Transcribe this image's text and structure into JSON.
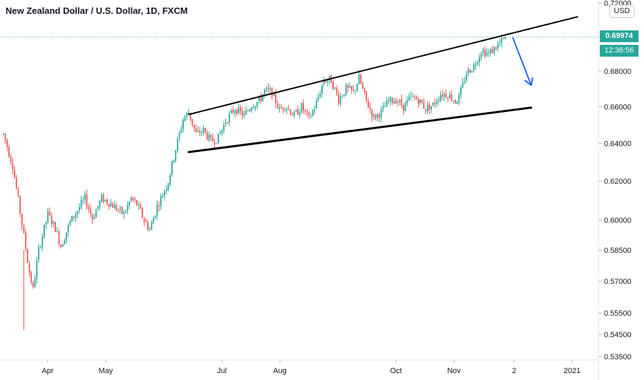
{
  "header": {
    "title": "New Zealand Dollar / U.S. Dollar, 1D, FXCM",
    "currency_button": "USD"
  },
  "last_price": {
    "value": "0.69974",
    "countdown": "12:36:56"
  },
  "colors": {
    "up": "#26a69a",
    "down": "#ef5350",
    "drawing": "#000000",
    "arrow": "#2962ff"
  },
  "chart_data": {
    "type": "candlestick",
    "title": "New Zealand Dollar / U.S. Dollar, 1D, FXCM",
    "y_scale": "log",
    "yticks": [
      "0.72000",
      "0.68000",
      "0.66000",
      "0.64000",
      "0.62000",
      "0.60000",
      "0.58500",
      "0.57000",
      "0.55500",
      "0.54500",
      "0.53500"
    ],
    "xticks": [
      "Apr",
      "May",
      "Jul",
      "Aug",
      "Oct",
      "Nov",
      "2",
      "2021"
    ],
    "ylim": [
      0.532,
      0.722
    ],
    "last_close": 0.69974,
    "path": [
      [
        0,
        0.645
      ],
      [
        5,
        0.628
      ],
      [
        10,
        0.598
      ],
      [
        14,
        0.574
      ],
      [
        16,
        0.566
      ],
      [
        19,
        0.585
      ],
      [
        24,
        0.603
      ],
      [
        28,
        0.596
      ],
      [
        31,
        0.587
      ],
      [
        36,
        0.599
      ],
      [
        40,
        0.605
      ],
      [
        44,
        0.611
      ],
      [
        48,
        0.601
      ],
      [
        53,
        0.611
      ],
      [
        57,
        0.609
      ],
      [
        61,
        0.606
      ],
      [
        65,
        0.603
      ],
      [
        69,
        0.611
      ],
      [
        72,
        0.608
      ],
      [
        76,
        0.6
      ],
      [
        79,
        0.595
      ],
      [
        83,
        0.607
      ],
      [
        86,
        0.613
      ],
      [
        89,
        0.62
      ],
      [
        93,
        0.637
      ],
      [
        97,
        0.653
      ],
      [
        100,
        0.657
      ],
      [
        104,
        0.645
      ],
      [
        108,
        0.647
      ],
      [
        112,
        0.641
      ],
      [
        116,
        0.643
      ],
      [
        120,
        0.652
      ],
      [
        125,
        0.659
      ],
      [
        130,
        0.655
      ],
      [
        134,
        0.661
      ],
      [
        138,
        0.663
      ],
      [
        141,
        0.669
      ],
      [
        145,
        0.668
      ],
      [
        149,
        0.658
      ],
      [
        152,
        0.661
      ],
      [
        157,
        0.655
      ],
      [
        161,
        0.66
      ],
      [
        165,
        0.653
      ],
      [
        169,
        0.662
      ],
      [
        173,
        0.675
      ],
      [
        177,
        0.675
      ],
      [
        181,
        0.664
      ],
      [
        185,
        0.67
      ],
      [
        189,
        0.668
      ],
      [
        192,
        0.676
      ],
      [
        196,
        0.663
      ],
      [
        200,
        0.654
      ],
      [
        204,
        0.657
      ],
      [
        208,
        0.663
      ],
      [
        212,
        0.664
      ],
      [
        216,
        0.66
      ],
      [
        220,
        0.665
      ],
      [
        224,
        0.664
      ],
      [
        228,
        0.659
      ],
      [
        232,
        0.661
      ],
      [
        236,
        0.667
      ],
      [
        240,
        0.667
      ],
      [
        244,
        0.663
      ],
      [
        246,
        0.665
      ],
      [
        250,
        0.679
      ],
      [
        254,
        0.683
      ],
      [
        258,
        0.692
      ],
      [
        262,
        0.69
      ],
      [
        266,
        0.694
      ],
      [
        270,
        0.698
      ],
      [
        271,
        0.69974
      ]
    ],
    "drawings": {
      "resistance_line": [
        [
          100,
          0.6557
        ],
        [
          310,
          0.7118
        ]
      ],
      "support_line": [
        [
          100,
          0.6353
        ],
        [
          285,
          0.6595
        ]
      ],
      "down_arrow": {
        "from": [
          275,
          0.6995
        ],
        "to": [
          285,
          0.672
        ]
      }
    }
  }
}
